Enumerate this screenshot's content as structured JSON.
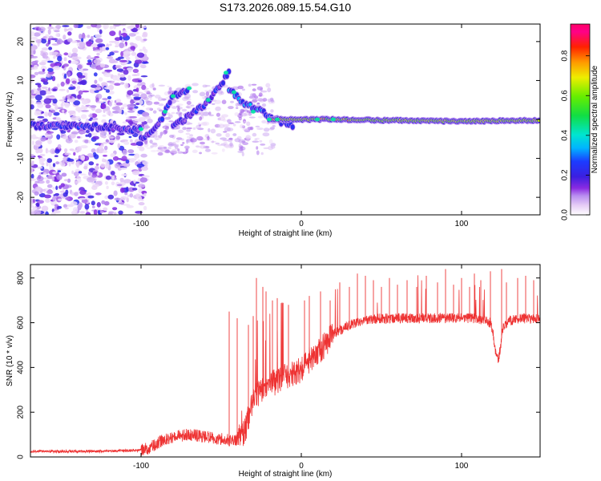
{
  "figure_title": "S173.2026.089.15.54.G10",
  "chart_data": [
    {
      "type": "heatmap",
      "title": "S173.2026.089.15.54.G10",
      "xlabel": "Height of straight line (km)",
      "ylabel": "Frequency (Hz)",
      "xlim": [
        -169,
        149
      ],
      "ylim": [
        -24.5,
        24.5
      ],
      "xticks": [
        -100,
        0,
        100
      ],
      "yticks": [
        -20,
        -10,
        0,
        10,
        20
      ],
      "colorbar": {
        "label": "Normalized spectral amplitude",
        "range": [
          0.0,
          0.96
        ],
        "ticks": [
          0.0,
          0.2,
          0.4,
          0.6,
          0.8
        ],
        "tick_labels": [
          "0.0",
          "0.2",
          "0.4",
          "0.6",
          "0.8"
        ],
        "colormap": "rainbow (white-violet-blue-cyan-green-yellow-red-magenta)"
      },
      "ridges": [
        {
          "name": "steady tone",
          "x": [
            -169,
            -140,
            -120,
            -105,
            -100
          ],
          "freq": [
            -1.5,
            -1.8,
            -2.0,
            -2.5,
            -2.5
          ],
          "amplitude": 0.2
        },
        {
          "name": "rising chirp A",
          "x": [
            -100,
            -90,
            -85,
            -80,
            -70
          ],
          "freq": [
            -5,
            -2,
            2,
            6,
            8
          ],
          "amplitude": 0.2
        },
        {
          "name": "rising chirp B",
          "x": [
            -80,
            -70,
            -60,
            -50,
            -45
          ],
          "freq": [
            -2,
            1,
            4,
            9,
            12
          ],
          "amplitude": 0.2
        },
        {
          "name": "descending branch",
          "x": [
            -45,
            -35,
            -25,
            -15,
            -5
          ],
          "freq": [
            8,
            4,
            2,
            0,
            -2
          ],
          "amplitude": 0.3
        },
        {
          "name": "stable tone",
          "x": [
            -20,
            0,
            20,
            50,
            100,
            149
          ],
          "freq": [
            0,
            0,
            0,
            -0.2,
            -0.5,
            -0.2
          ],
          "amplitude": 0.75
        }
      ]
    },
    {
      "type": "line",
      "xlabel": "Height of straight line (km)",
      "ylabel": "SNR (10 * v/v)",
      "xlim": [
        -169,
        149
      ],
      "ylim": [
        0,
        860
      ],
      "xticks": [
        -100,
        0,
        100
      ],
      "yticks": [
        0,
        200,
        400,
        600,
        800
      ],
      "color": "#ee3333",
      "series": [
        {
          "name": "SNR",
          "x": [
            -169,
            -150,
            -130,
            -110,
            -100,
            -95,
            -90,
            -85,
            -80,
            -75,
            -70,
            -65,
            -60,
            -55,
            -50,
            -45,
            -40,
            -35,
            -30,
            -25,
            -20,
            -15,
            -10,
            -5,
            0,
            5,
            10,
            15,
            20,
            25,
            30,
            40,
            50,
            60,
            70,
            80,
            90,
            100,
            110,
            118,
            120,
            121,
            123,
            124,
            126,
            130,
            140,
            149
          ],
          "values": [
            25,
            25,
            25,
            28,
            30,
            40,
            60,
            80,
            90,
            95,
            100,
            95,
            90,
            85,
            80,
            75,
            75,
            120,
            260,
            300,
            330,
            330,
            360,
            370,
            390,
            430,
            470,
            500,
            550,
            570,
            590,
            610,
            620,
            620,
            620,
            620,
            620,
            620,
            620,
            600,
            540,
            470,
            430,
            480,
            580,
            610,
            620,
            620
          ],
          "spike_positions": [
            -45,
            -40,
            -33,
            -30,
            -28,
            -24,
            -22,
            -18,
            -15,
            -12,
            -8,
            2,
            5,
            12,
            18,
            24,
            30,
            35,
            40,
            45,
            50,
            55,
            60,
            66,
            72,
            78,
            85,
            90,
            95,
            100,
            105,
            108,
            112,
            118,
            125,
            128,
            135,
            140,
            145
          ],
          "spike_heights": [
            650,
            620,
            590,
            630,
            800,
            760,
            740,
            700,
            710,
            690,
            680,
            700,
            720,
            740,
            700,
            780,
            760,
            820,
            810,
            790,
            760,
            800,
            770,
            790,
            760,
            810,
            780,
            840,
            770,
            800,
            760,
            820,
            790,
            830,
            840,
            780,
            800,
            810,
            790
          ]
        }
      ]
    }
  ]
}
